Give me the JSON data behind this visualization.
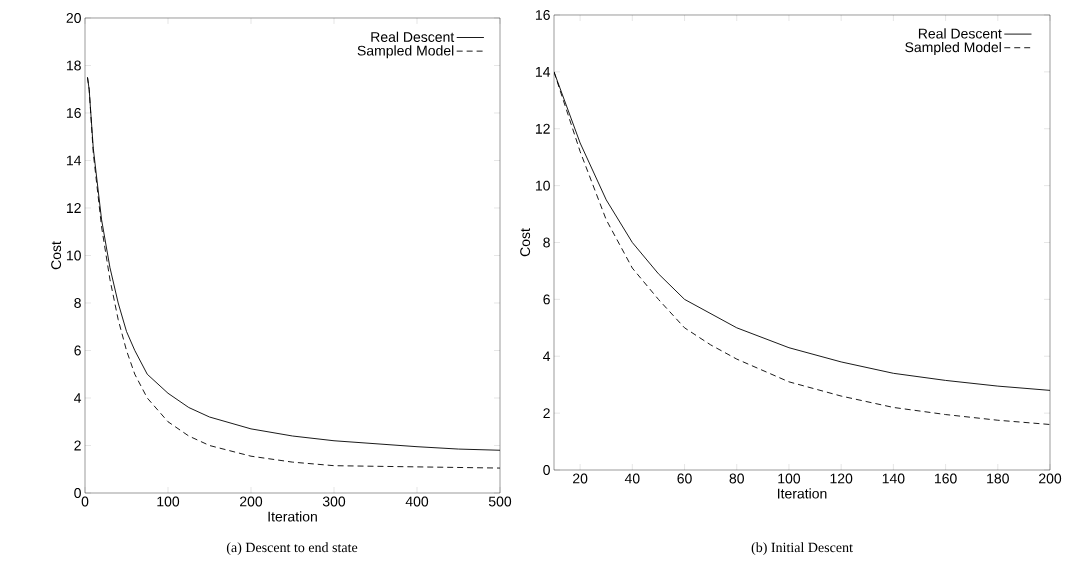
{
  "chart_data": [
    {
      "type": "line",
      "title": "(a) Descent to end state",
      "xlabel": "Iteration",
      "ylabel": "Cost",
      "xlim": [
        0,
        500
      ],
      "ylim": [
        0,
        20
      ],
      "xticks": [
        0,
        100,
        200,
        300,
        400,
        500
      ],
      "yticks": [
        0,
        2,
        4,
        6,
        8,
        10,
        12,
        14,
        16,
        18,
        20
      ],
      "legend": "top right",
      "grid": false,
      "series": [
        {
          "name": "Real Descent",
          "color": "#000000",
          "line_style": "solid",
          "x": [
            3,
            5,
            10,
            20,
            30,
            40,
            50,
            60,
            75,
            100,
            125,
            150,
            200,
            250,
            300,
            400,
            450,
            500
          ],
          "values": [
            17.5,
            17,
            14.5,
            11.5,
            9.5,
            8,
            6.8,
            6,
            5,
            4.2,
            3.6,
            3.2,
            2.7,
            2.4,
            2.2,
            1.95,
            1.85,
            1.8
          ]
        },
        {
          "name": "Sampled Model",
          "color": "#000000",
          "line_style": "dashed",
          "x": [
            3,
            5,
            10,
            20,
            30,
            40,
            50,
            60,
            75,
            100,
            125,
            150,
            200,
            250,
            300,
            400,
            500
          ],
          "values": [
            17.5,
            17,
            14.3,
            11.2,
            9,
            7.3,
            6,
            5,
            4,
            3,
            2.4,
            2,
            1.55,
            1.3,
            1.15,
            1.1,
            1.05
          ]
        }
      ]
    },
    {
      "type": "line",
      "title": "(b) Initial Descent",
      "xlabel": "Iteration",
      "ylabel": "Cost",
      "xlim": [
        10,
        200
      ],
      "ylim": [
        0,
        16
      ],
      "xticks": [
        20,
        40,
        60,
        80,
        100,
        120,
        140,
        160,
        180,
        200
      ],
      "yticks": [
        0,
        2,
        4,
        6,
        8,
        10,
        12,
        14,
        16
      ],
      "legend": "top right",
      "grid": false,
      "series": [
        {
          "name": "Real Descent",
          "color": "#000000",
          "line_style": "solid",
          "x": [
            10,
            20,
            30,
            40,
            50,
            60,
            70,
            80,
            100,
            120,
            140,
            160,
            180,
            200
          ],
          "values": [
            14,
            11.5,
            9.5,
            8,
            6.9,
            6,
            5.5,
            5,
            4.3,
            3.8,
            3.4,
            3.15,
            2.95,
            2.8
          ]
        },
        {
          "name": "Sampled Model",
          "color": "#000000",
          "line_style": "dashed",
          "x": [
            10,
            20,
            30,
            40,
            50,
            60,
            70,
            80,
            100,
            120,
            140,
            160,
            180,
            200
          ],
          "values": [
            14,
            11.2,
            8.8,
            7.1,
            6,
            5,
            4.4,
            3.9,
            3.1,
            2.6,
            2.2,
            1.95,
            1.75,
            1.6
          ]
        }
      ]
    }
  ]
}
